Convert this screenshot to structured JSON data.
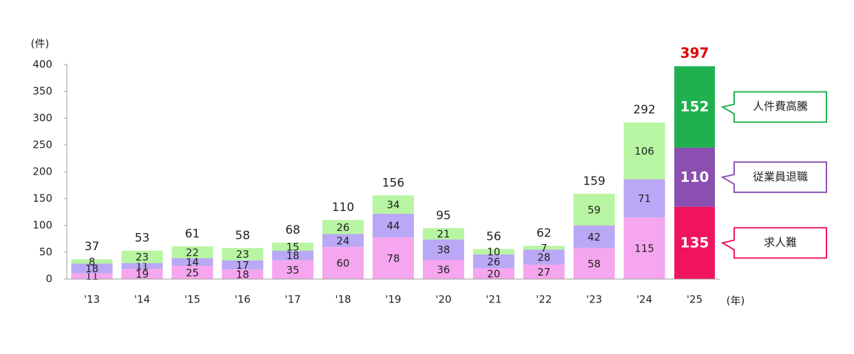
{
  "chart_data": {
    "type": "stacked-bar",
    "y_unit": "(件)",
    "x_unit": "(年)",
    "categories": [
      "'13",
      "'14",
      "'15",
      "'16",
      "'17",
      "'18",
      "'19",
      "'20",
      "'21",
      "'22",
      "'23",
      "'24",
      "'25"
    ],
    "series": [
      {
        "name": "求人難",
        "color": "#f5a6ee",
        "highlight_color": "#f0145f",
        "values": [
          11,
          19,
          25,
          18,
          35,
          60,
          78,
          36,
          20,
          27,
          58,
          115,
          135
        ]
      },
      {
        "name": "従業員退職",
        "color": "#b9a8f5",
        "highlight_color": "#8a4fb0",
        "values": [
          18,
          11,
          14,
          17,
          18,
          24,
          44,
          38,
          26,
          28,
          42,
          71,
          110
        ]
      },
      {
        "name": "人件費高騰",
        "color": "#b8f5a2",
        "highlight_color": "#20b14e",
        "values": [
          8,
          23,
          22,
          23,
          15,
          26,
          34,
          21,
          10,
          7,
          59,
          106,
          152
        ]
      }
    ],
    "totals": [
      37,
      53,
      61,
      58,
      68,
      110,
      156,
      95,
      56,
      62,
      159,
      292,
      397
    ],
    "highlight_total_color": "#e00000",
    "ylim": [
      0,
      400
    ],
    "yticks": [
      0,
      50,
      100,
      150,
      200,
      250,
      300,
      350,
      400
    ]
  }
}
